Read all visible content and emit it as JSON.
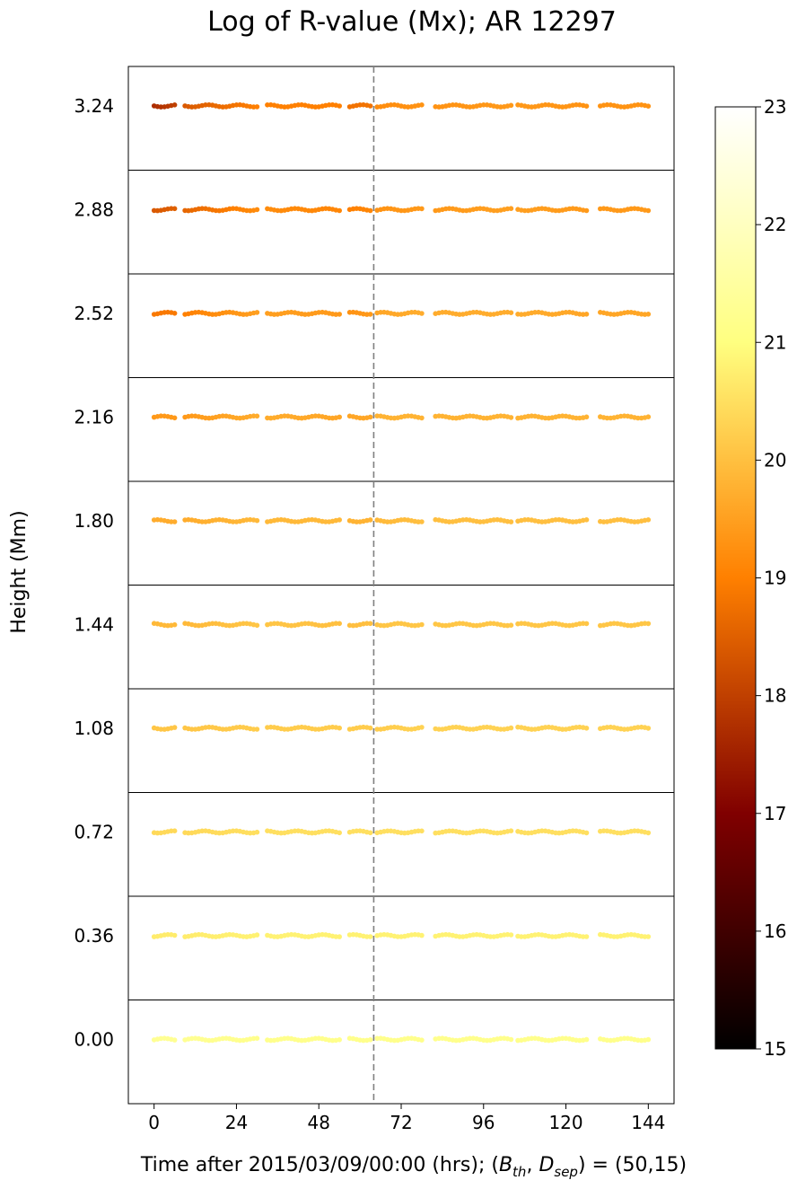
{
  "chart_data": {
    "type": "scatter",
    "title": "Log of R-value (Mx); AR 12297",
    "xlabel": {
      "prefix": "Time after 2015/03/09/00:00 (hrs); (",
      "b": "B",
      "b_sub": "th",
      "sep": ", ",
      "d": "D",
      "d_sub": "sep",
      "suffix": ") = (50,15)"
    },
    "ylabel": "Height (Mm)",
    "xlim": [
      -7.5,
      151.5
    ],
    "x_ticks": [
      "0",
      "24",
      "48",
      "72",
      "96",
      "120",
      "144"
    ],
    "x_tick_values": [
      0,
      24,
      48,
      72,
      96,
      120,
      144
    ],
    "event_line_x": 64,
    "heights": [
      "3.24",
      "2.88",
      "2.52",
      "2.16",
      "1.80",
      "1.44",
      "1.08",
      "0.72",
      "0.36",
      "0.00"
    ],
    "colorbar": {
      "range": [
        15,
        23
      ],
      "ticks": [
        "15",
        "16",
        "17",
        "18",
        "19",
        "20",
        "21",
        "22",
        "23"
      ],
      "tick_values": [
        15,
        16,
        17,
        18,
        19,
        20,
        21,
        22,
        23
      ],
      "colormap": "afmhot"
    },
    "series": [
      {
        "height": "3.24",
        "segments": [
          [
            0,
            6,
            17.7,
            18.0
          ],
          [
            9,
            30,
            18.4,
            19.0
          ],
          [
            33,
            54,
            19.0,
            19.0
          ],
          [
            57,
            63,
            18.8,
            18.8
          ],
          [
            65,
            78,
            19.2,
            19.3
          ],
          [
            82,
            104,
            19.3,
            19.4
          ],
          [
            106,
            126,
            19.4,
            19.3
          ],
          [
            130,
            144,
            19.3,
            19.3
          ]
        ]
      },
      {
        "height": "2.88",
        "segments": [
          [
            0,
            6,
            18.4,
            18.5
          ],
          [
            9,
            30,
            18.6,
            19.2
          ],
          [
            33,
            54,
            19.2,
            19.1
          ],
          [
            57,
            63,
            19.0,
            19.1
          ],
          [
            65,
            78,
            19.3,
            19.4
          ],
          [
            82,
            104,
            19.4,
            19.5
          ],
          [
            106,
            126,
            19.5,
            19.4
          ],
          [
            130,
            144,
            19.4,
            19.4
          ]
        ]
      },
      {
        "height": "2.52",
        "segments": [
          [
            0,
            6,
            18.9,
            18.9
          ],
          [
            9,
            30,
            19.0,
            19.5
          ],
          [
            33,
            54,
            19.5,
            19.4
          ],
          [
            57,
            63,
            19.3,
            19.4
          ],
          [
            65,
            78,
            19.6,
            19.7
          ],
          [
            82,
            104,
            19.7,
            19.7
          ],
          [
            106,
            126,
            19.7,
            19.6
          ],
          [
            130,
            144,
            19.6,
            19.6
          ]
        ]
      },
      {
        "height": "2.16",
        "segments": [
          [
            0,
            6,
            19.4,
            19.4
          ],
          [
            9,
            30,
            19.4,
            19.7
          ],
          [
            33,
            54,
            19.7,
            19.6
          ],
          [
            57,
            63,
            19.6,
            19.6
          ],
          [
            65,
            78,
            19.8,
            19.8
          ],
          [
            82,
            104,
            19.8,
            19.8
          ],
          [
            106,
            126,
            19.8,
            19.8
          ],
          [
            130,
            144,
            19.8,
            19.8
          ]
        ]
      },
      {
        "height": "1.80",
        "segments": [
          [
            0,
            6,
            19.7,
            19.7
          ],
          [
            9,
            30,
            19.7,
            19.9
          ],
          [
            33,
            54,
            19.9,
            19.9
          ],
          [
            57,
            63,
            19.8,
            19.8
          ],
          [
            65,
            78,
            19.9,
            20.0
          ],
          [
            82,
            104,
            20.0,
            20.0
          ],
          [
            106,
            126,
            20.0,
            20.0
          ],
          [
            130,
            144,
            20.0,
            20.0
          ]
        ]
      },
      {
        "height": "1.44",
        "segments": [
          [
            0,
            6,
            19.9,
            19.9
          ],
          [
            9,
            30,
            19.9,
            20.1
          ],
          [
            33,
            54,
            20.1,
            20.0
          ],
          [
            57,
            63,
            20.0,
            20.0
          ],
          [
            65,
            78,
            20.1,
            20.1
          ],
          [
            82,
            104,
            20.1,
            20.1
          ],
          [
            106,
            126,
            20.1,
            20.1
          ],
          [
            130,
            144,
            20.1,
            20.1
          ]
        ]
      },
      {
        "height": "1.08",
        "segments": [
          [
            0,
            6,
            20.1,
            20.1
          ],
          [
            9,
            30,
            20.1,
            20.2
          ],
          [
            33,
            54,
            20.2,
            20.2
          ],
          [
            57,
            63,
            20.2,
            20.2
          ],
          [
            65,
            78,
            20.2,
            20.3
          ],
          [
            82,
            104,
            20.3,
            20.3
          ],
          [
            106,
            126,
            20.3,
            20.3
          ],
          [
            130,
            144,
            20.3,
            20.3
          ]
        ]
      },
      {
        "height": "0.72",
        "segments": [
          [
            0,
            6,
            20.4,
            20.4
          ],
          [
            9,
            30,
            20.4,
            20.5
          ],
          [
            33,
            54,
            20.5,
            20.5
          ],
          [
            57,
            63,
            20.5,
            20.5
          ],
          [
            65,
            78,
            20.5,
            20.5
          ],
          [
            82,
            104,
            20.5,
            20.5
          ],
          [
            106,
            126,
            20.5,
            20.5
          ],
          [
            130,
            144,
            20.5,
            20.5
          ]
        ]
      },
      {
        "height": "0.36",
        "segments": [
          [
            0,
            6,
            20.7,
            20.7
          ],
          [
            9,
            30,
            20.7,
            20.8
          ],
          [
            33,
            54,
            20.8,
            20.8
          ],
          [
            57,
            63,
            20.8,
            20.8
          ],
          [
            65,
            78,
            20.8,
            20.8
          ],
          [
            82,
            104,
            20.8,
            20.8
          ],
          [
            106,
            126,
            20.8,
            20.8
          ],
          [
            130,
            144,
            20.8,
            20.8
          ]
        ]
      },
      {
        "height": "0.00",
        "segments": [
          [
            0,
            6,
            21.3,
            21.3
          ],
          [
            9,
            30,
            21.3,
            21.2
          ],
          [
            33,
            54,
            21.2,
            21.2
          ],
          [
            57,
            63,
            21.2,
            21.2
          ],
          [
            65,
            78,
            21.2,
            21.2
          ],
          [
            82,
            104,
            21.2,
            21.2
          ],
          [
            106,
            126,
            21.2,
            21.2
          ],
          [
            130,
            144,
            21.2,
            21.2
          ]
        ]
      }
    ]
  }
}
